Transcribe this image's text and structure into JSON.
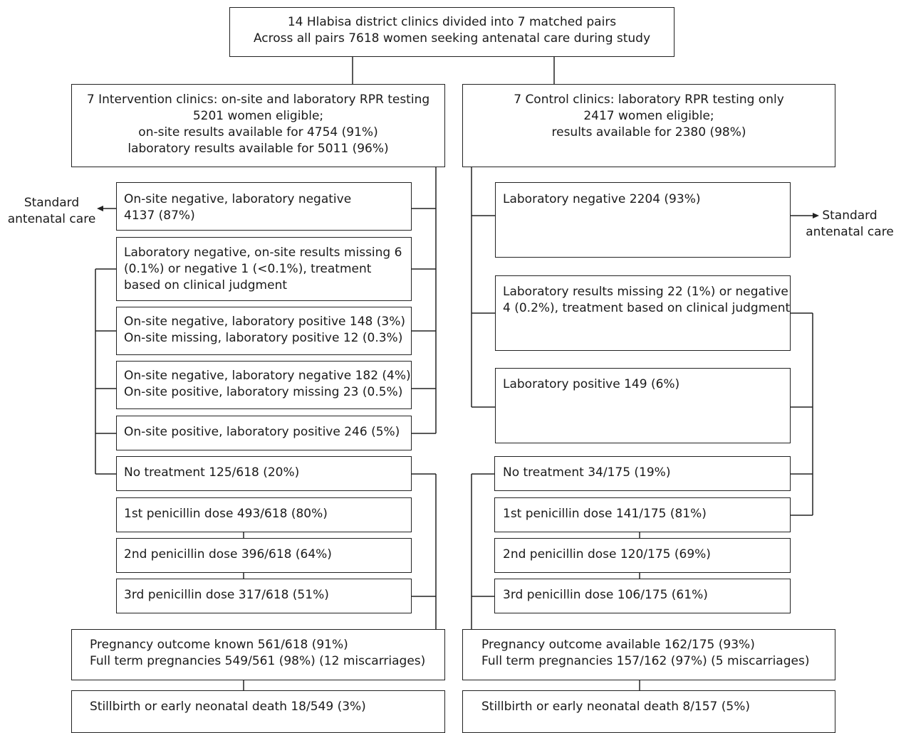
{
  "top": {
    "lines": [
      "14 Hlabisa district clinics divided into 7 matched pairs",
      "Across all pairs 7618 women seeking antenatal care during study"
    ]
  },
  "intervention": {
    "header": [
      "7 Intervention clinics: on-site and laboratory RPR testing",
      "5201 women eligible;",
      "on-site results available for 4754 (91%)",
      "laboratory results available for 5011 (96%)"
    ],
    "groups": [
      {
        "lines": [
          "On-site negative, laboratory negative",
          "4137 (87%)"
        ]
      },
      {
        "lines": [
          "Laboratory negative, on-site results missing 6",
          "(0.1%) or negative 1 (<0.1%), treatment",
          "based on clinical judgment"
        ]
      },
      {
        "lines": [
          "On-site negative, laboratory positive 148 (3%)",
          "On-site missing, laboratory positive 12 (0.3%)"
        ]
      },
      {
        "lines": [
          "On-site negative, laboratory negative 182 (4%)",
          "On-site positive, laboratory missing 23 (0.5%)"
        ]
      },
      {
        "lines": [
          "On-site positive, laboratory positive 246 (5%)"
        ]
      }
    ],
    "standard_care": [
      "Standard",
      "antenatal care"
    ],
    "treatment": [
      "No treatment 125/618 (20%)",
      "1st penicillin dose 493/618 (80%)",
      "2nd penicillin dose 396/618 (64%)",
      "3rd penicillin dose 317/618 (51%)"
    ],
    "outcome": [
      "Pregnancy outcome known 561/618 (91%)",
      "Full term pregnancies 549/561 (98%) (12 miscarriages)"
    ],
    "stillbirth": "Stillbirth or early neonatal death 18/549 (3%)"
  },
  "control": {
    "header": [
      "7 Control clinics: laboratory RPR testing only",
      "2417 women eligible;",
      "results available for 2380 (98%)"
    ],
    "groups": [
      {
        "lines": [
          "Laboratory negative 2204 (93%)"
        ]
      },
      {
        "lines": [
          "Laboratory results missing 22 (1%) or negative",
          "4 (0.2%), treatment based on clinical judgment"
        ]
      },
      {
        "lines": [
          "Laboratory positive 149 (6%)"
        ]
      }
    ],
    "standard_care": [
      "Standard",
      "antenatal care"
    ],
    "treatment": [
      "No treatment 34/175 (19%)",
      "1st penicillin dose 141/175 (81%)",
      "2nd penicillin dose 120/175 (69%)",
      "3rd penicillin dose 106/175 (61%)"
    ],
    "outcome": [
      "Pregnancy outcome available 162/175 (93%)",
      "Full term pregnancies 157/162 (97%) (5 miscarriages)"
    ],
    "stillbirth": "Stillbirth or early neonatal death 8/157 (5%)"
  }
}
